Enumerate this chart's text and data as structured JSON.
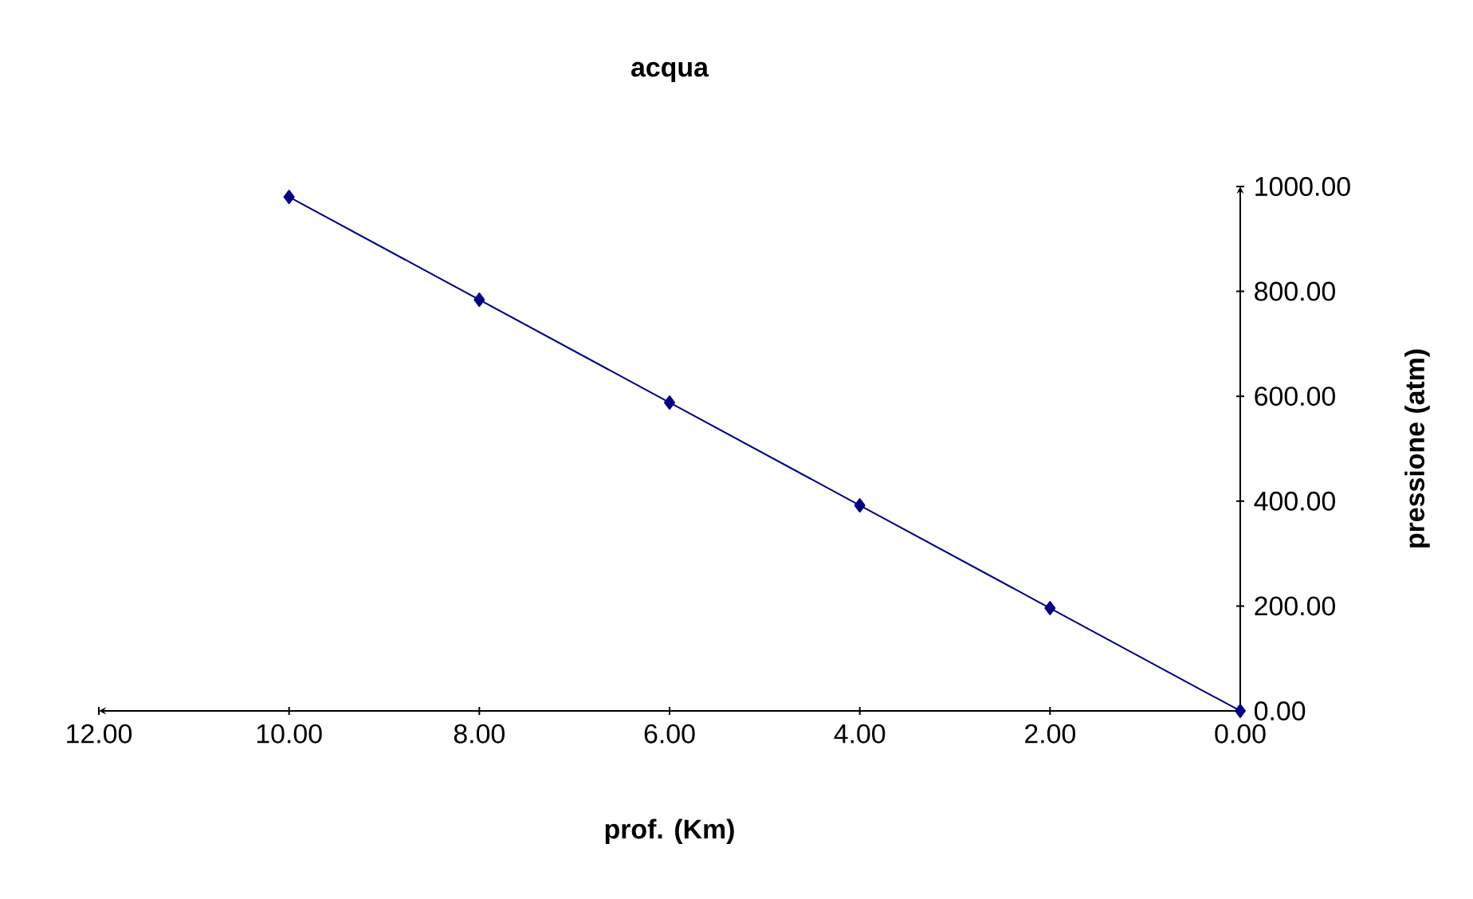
{
  "chart_data": {
    "type": "line",
    "title": "acqua",
    "xlabel": "prof. (Km)",
    "ylabel": "pressione (atm)",
    "x": [
      10,
      8,
      6,
      4,
      2,
      0
    ],
    "series": [
      {
        "color": "#000080",
        "values": [
          980,
          784,
          588,
          392,
          196,
          0
        ]
      }
    ],
    "xlim": [
      12,
      0
    ],
    "ylim": [
      0,
      1000
    ],
    "xticks": [
      {
        "value": 12,
        "label": "12.00"
      },
      {
        "value": 10,
        "label": "10.00"
      },
      {
        "value": 8,
        "label": "8.00"
      },
      {
        "value": 6,
        "label": "6.00"
      },
      {
        "value": 4,
        "label": "4.00"
      },
      {
        "value": 2,
        "label": "2.00"
      },
      {
        "value": 0,
        "label": "0.00"
      }
    ],
    "yticks": [
      {
        "value": 0,
        "label": "0.00"
      },
      {
        "value": 200,
        "label": "200.00"
      },
      {
        "value": 400,
        "label": "400.00"
      },
      {
        "value": 600,
        "label": "600.00"
      },
      {
        "value": 800,
        "label": "800.00"
      },
      {
        "value": 1000,
        "label": "1000.00"
      }
    ],
    "grid": false,
    "marker": "diamond",
    "line_style": "solid"
  }
}
